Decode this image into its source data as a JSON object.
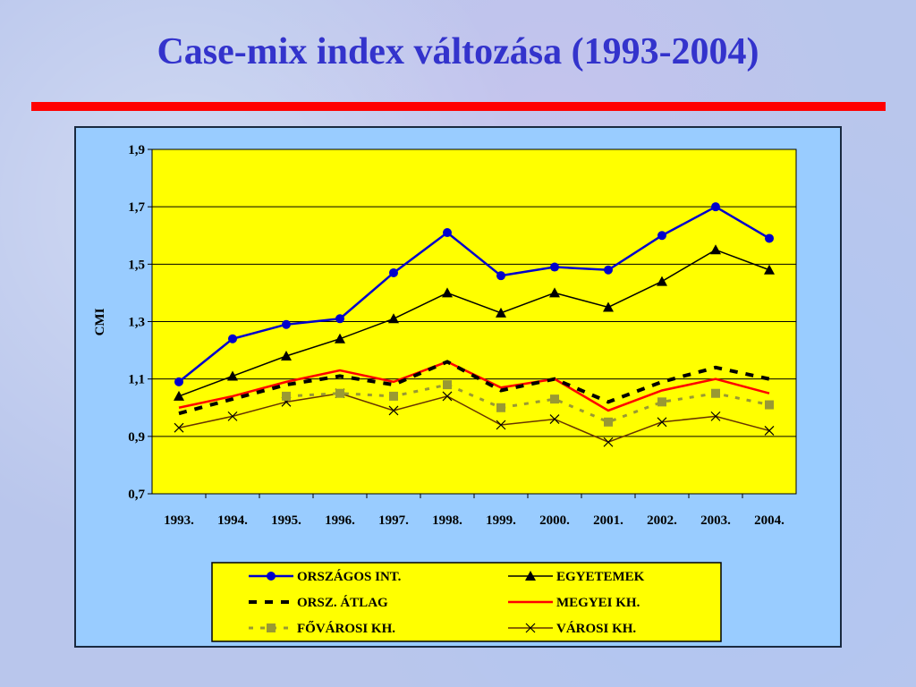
{
  "title": "Case-mix index változása (1993-2004)",
  "chart_data": {
    "type": "line",
    "title": "Case-mix index változása (1993-2004)",
    "xlabel": "",
    "ylabel": "CMI",
    "ylim": [
      0.7,
      1.9
    ],
    "yticks": [
      "0,7",
      "0,9",
      "1,1",
      "1,3",
      "1,5",
      "1,7",
      "1,9"
    ],
    "categories": [
      "1993.",
      "1994.",
      "1995.",
      "1996.",
      "1997.",
      "1998.",
      "1999.",
      "2000.",
      "2001.",
      "2002.",
      "2003.",
      "2004."
    ],
    "grid": true,
    "legend_position": "bottom",
    "series": [
      {
        "name": "ORSZÁGOS INT.",
        "color": "#0000cc",
        "marker": "circle",
        "values": [
          1.09,
          1.24,
          1.29,
          1.31,
          1.47,
          1.61,
          1.46,
          1.49,
          1.48,
          1.6,
          1.7,
          1.59
        ]
      },
      {
        "name": "EGYETEMEK",
        "color": "#000000",
        "marker": "triangle",
        "values": [
          1.04,
          1.11,
          1.18,
          1.24,
          1.31,
          1.4,
          1.33,
          1.4,
          1.35,
          1.44,
          1.55,
          1.48
        ]
      },
      {
        "name": "ORSZ. ÁTLAG",
        "color": "#000000",
        "marker": "none",
        "dash": "dashed-bold",
        "values": [
          0.98,
          1.03,
          1.08,
          1.11,
          1.08,
          1.16,
          1.06,
          1.1,
          1.02,
          1.09,
          1.14,
          1.1
        ]
      },
      {
        "name": "MEGYEI KH.",
        "color": "#ff0000",
        "marker": "none",
        "values": [
          1.0,
          1.04,
          1.09,
          1.13,
          1.09,
          1.16,
          1.07,
          1.1,
          0.99,
          1.06,
          1.1,
          1.05
        ]
      },
      {
        "name": "FŐVÁROSI KH.",
        "color": "#999933",
        "marker": "square",
        "dash": "dotted",
        "values": [
          null,
          null,
          1.04,
          1.05,
          1.04,
          1.08,
          1.0,
          1.03,
          0.95,
          1.02,
          1.05,
          1.01
        ]
      },
      {
        "name": "VÁROSI KH.",
        "color": "#663300",
        "marker": "x",
        "values": [
          0.93,
          0.97,
          1.02,
          1.05,
          0.99,
          1.04,
          0.94,
          0.96,
          0.88,
          0.95,
          0.97,
          0.92
        ]
      }
    ]
  }
}
